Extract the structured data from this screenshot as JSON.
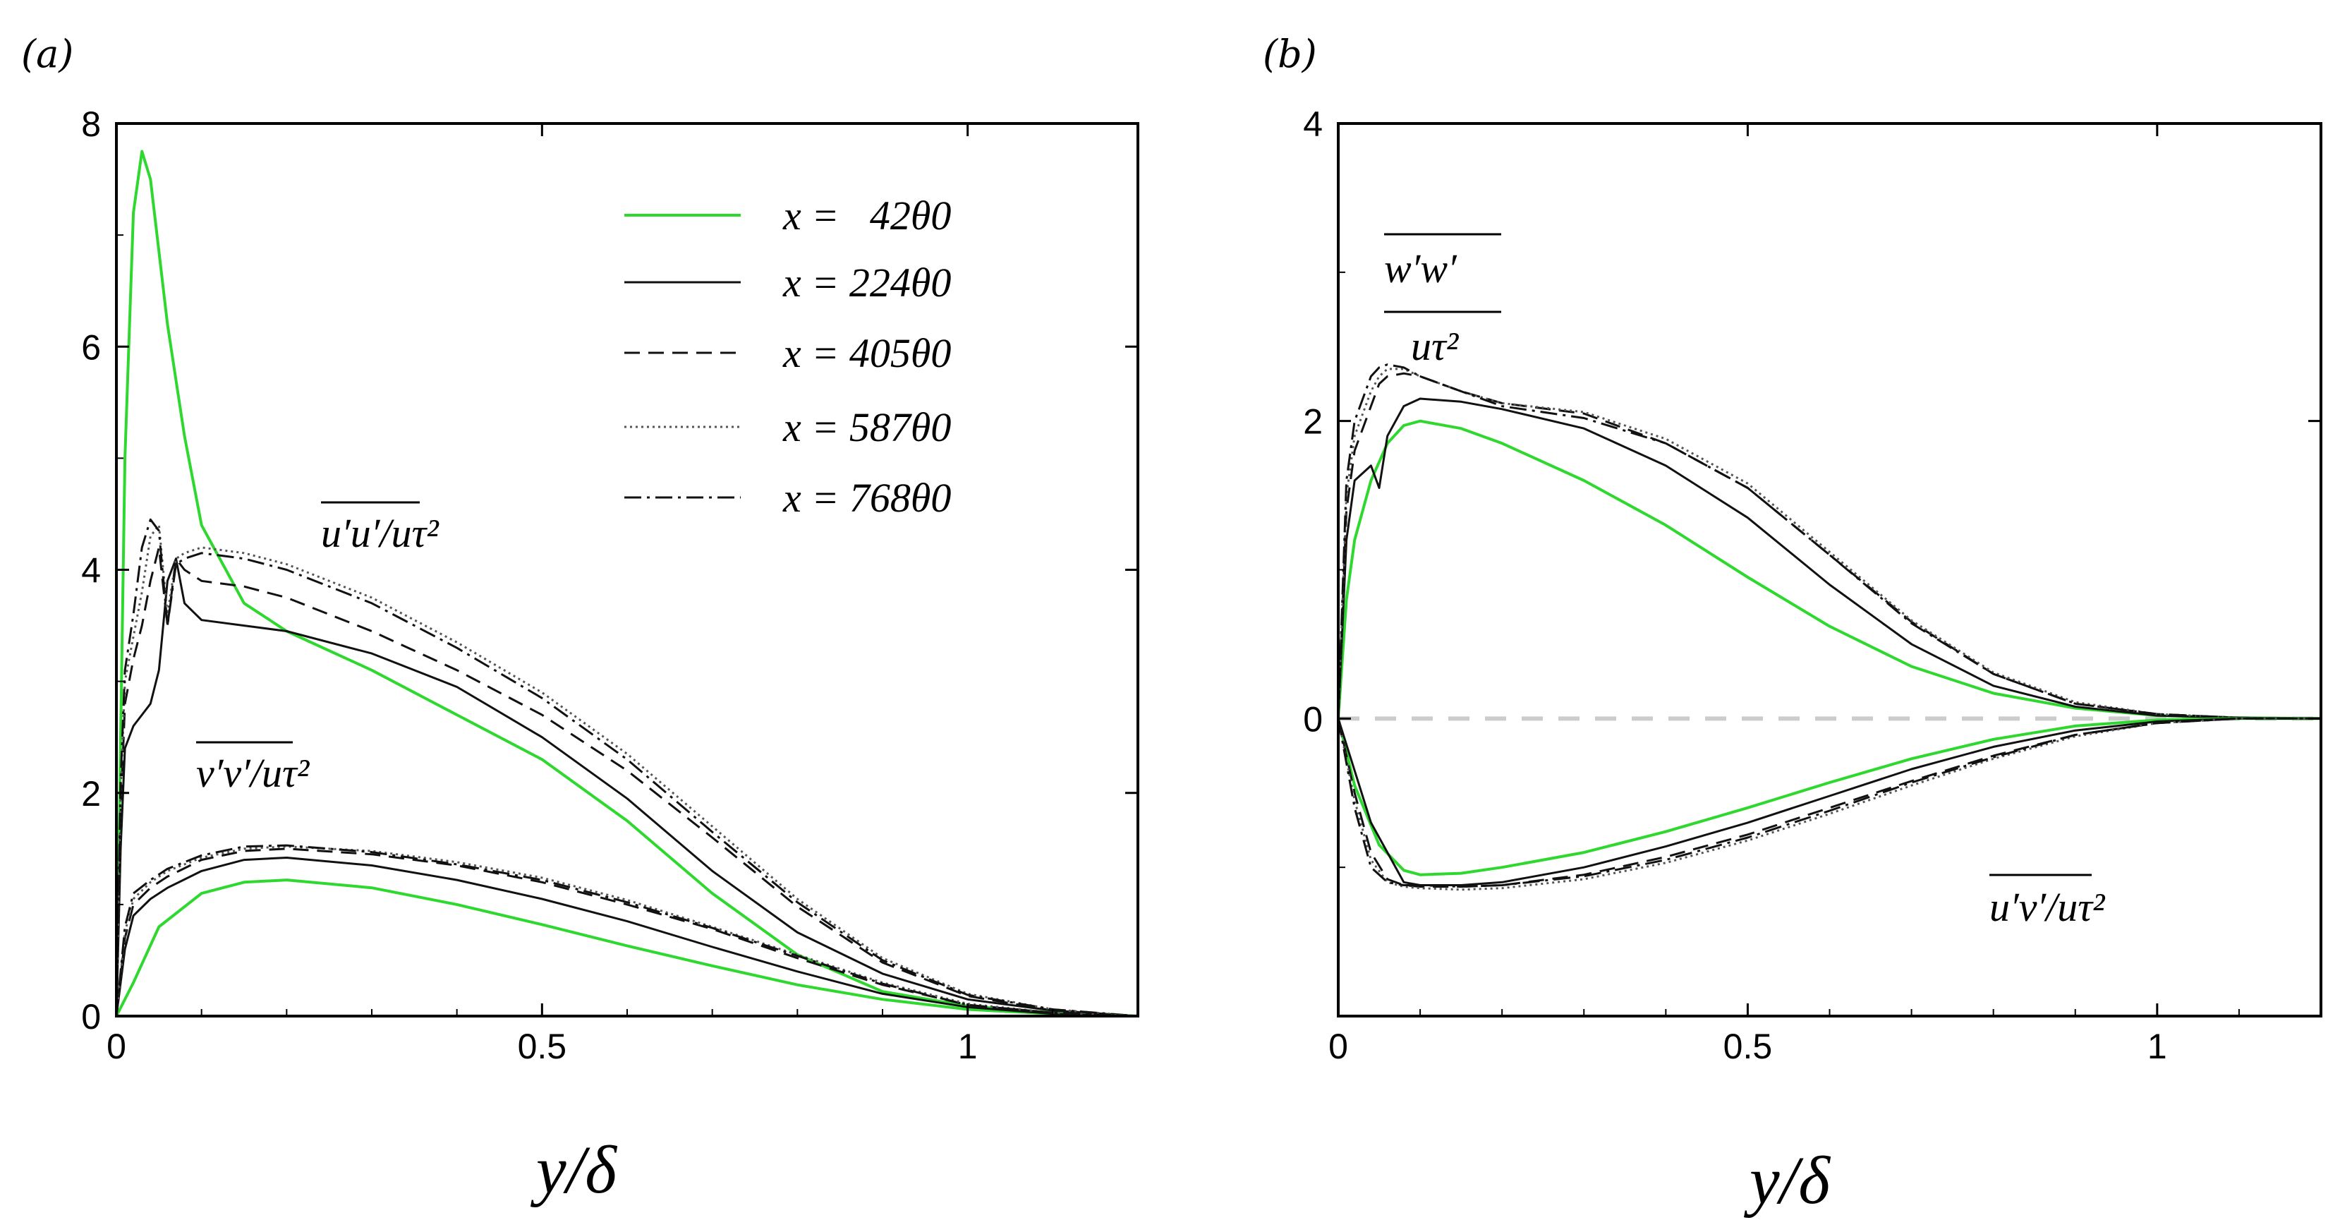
{
  "chart_data": [
    {
      "type": "line",
      "panel_label": "(a)",
      "xlabel": "y/δ",
      "ylabel": "",
      "xlim": [
        0,
        1.2
      ],
      "ylim": [
        0,
        8
      ],
      "xticks": [
        "0",
        "0.5",
        "1"
      ],
      "yticks": [
        "0",
        "2",
        "4",
        "6",
        "8"
      ],
      "legend": {
        "placement": "top-right",
        "entries": [
          "x =   42θ0",
          "x = 224θ0",
          "x = 405θ0",
          "x = 587θ0",
          "x = 768θ0"
        ]
      },
      "annotations": [
        "u′u′/uτ²",
        "v′v′/uτ²"
      ],
      "series": [
        {
          "name": "x =   42θ0",
          "quantity": "u′u′/uτ²",
          "color": "#2ed82e",
          "dash": "solid",
          "x": [
            0,
            0.005,
            0.01,
            0.02,
            0.03,
            0.04,
            0.06,
            0.08,
            0.1,
            0.15,
            0.2,
            0.3,
            0.4,
            0.5,
            0.6,
            0.7,
            0.8,
            0.9,
            1.0,
            1.1,
            1.2
          ],
          "y": [
            0,
            2.5,
            5.0,
            7.2,
            7.75,
            7.5,
            6.2,
            5.2,
            4.4,
            3.7,
            3.45,
            3.1,
            2.7,
            2.3,
            1.75,
            1.1,
            0.55,
            0.22,
            0.09,
            0.03,
            0.0
          ]
        },
        {
          "name": "x = 224θ0",
          "quantity": "u′u′/uτ²",
          "color": "#111111",
          "dash": "solid",
          "x": [
            0,
            0.005,
            0.01,
            0.02,
            0.03,
            0.04,
            0.05,
            0.06,
            0.07,
            0.08,
            0.1,
            0.15,
            0.2,
            0.3,
            0.4,
            0.5,
            0.6,
            0.7,
            0.8,
            0.9,
            1.0,
            1.1,
            1.2
          ],
          "y": [
            0,
            1.5,
            2.4,
            2.6,
            2.7,
            2.8,
            3.1,
            3.9,
            4.1,
            3.7,
            3.55,
            3.5,
            3.45,
            3.25,
            2.95,
            2.5,
            1.95,
            1.3,
            0.75,
            0.38,
            0.15,
            0.05,
            0.0
          ]
        },
        {
          "name": "x = 405θ0",
          "quantity": "u′u′/uτ²",
          "color": "#111111",
          "dash": "dashed",
          "x": [
            0,
            0.005,
            0.01,
            0.02,
            0.03,
            0.04,
            0.05,
            0.06,
            0.07,
            0.08,
            0.1,
            0.15,
            0.2,
            0.3,
            0.4,
            0.5,
            0.6,
            0.7,
            0.8,
            0.9,
            1.0,
            1.1,
            1.2
          ],
          "y": [
            0,
            1.8,
            2.8,
            3.2,
            3.5,
            3.9,
            4.2,
            3.5,
            4.1,
            4.0,
            3.9,
            3.85,
            3.75,
            3.45,
            3.1,
            2.7,
            2.2,
            1.6,
            0.98,
            0.48,
            0.18,
            0.05,
            0.0
          ]
        },
        {
          "name": "x = 587θ0",
          "quantity": "u′u′/uτ²",
          "color": "#555555",
          "dash": "dotted",
          "x": [
            0,
            0.005,
            0.01,
            0.02,
            0.03,
            0.04,
            0.05,
            0.06,
            0.07,
            0.08,
            0.1,
            0.15,
            0.2,
            0.3,
            0.4,
            0.5,
            0.6,
            0.7,
            0.8,
            0.9,
            1.0,
            1.1,
            1.2
          ],
          "y": [
            0,
            2.0,
            3.0,
            3.4,
            3.8,
            4.3,
            4.4,
            3.6,
            4.1,
            4.15,
            4.2,
            4.15,
            4.05,
            3.75,
            3.35,
            2.9,
            2.35,
            1.7,
            1.05,
            0.52,
            0.2,
            0.06,
            0.0
          ]
        },
        {
          "name": "x = 768θ0",
          "quantity": "u′u′/uτ²",
          "color": "#111111",
          "dash": "dashdot",
          "x": [
            0,
            0.005,
            0.01,
            0.02,
            0.03,
            0.04,
            0.05,
            0.06,
            0.07,
            0.08,
            0.1,
            0.15,
            0.2,
            0.3,
            0.4,
            0.5,
            0.6,
            0.7,
            0.8,
            0.9,
            1.0,
            1.1,
            1.2
          ],
          "y": [
            0,
            2.1,
            3.1,
            3.6,
            4.2,
            4.45,
            4.35,
            3.5,
            4.05,
            4.1,
            4.15,
            4.1,
            4.0,
            3.7,
            3.3,
            2.85,
            2.3,
            1.65,
            1.02,
            0.5,
            0.19,
            0.06,
            0.0
          ]
        },
        {
          "name": "x =   42θ0",
          "quantity": "v′v′/uτ²",
          "color": "#2ed82e",
          "dash": "solid",
          "x": [
            0,
            0.02,
            0.05,
            0.1,
            0.15,
            0.2,
            0.3,
            0.4,
            0.5,
            0.6,
            0.7,
            0.8,
            0.9,
            1.0,
            1.1,
            1.2
          ],
          "y": [
            0,
            0.3,
            0.8,
            1.1,
            1.2,
            1.22,
            1.15,
            1.0,
            0.82,
            0.63,
            0.45,
            0.28,
            0.15,
            0.06,
            0.02,
            0.0
          ]
        },
        {
          "name": "x = 224θ0",
          "quantity": "v′v′/uτ²",
          "color": "#111111",
          "dash": "solid",
          "x": [
            0,
            0.01,
            0.02,
            0.04,
            0.06,
            0.1,
            0.15,
            0.2,
            0.3,
            0.4,
            0.5,
            0.6,
            0.7,
            0.8,
            0.9,
            1.0,
            1.1,
            1.2
          ],
          "y": [
            0,
            0.6,
            0.9,
            1.05,
            1.15,
            1.3,
            1.4,
            1.42,
            1.35,
            1.22,
            1.05,
            0.85,
            0.62,
            0.4,
            0.2,
            0.08,
            0.02,
            0.0
          ]
        },
        {
          "name": "x = 405θ0",
          "quantity": "v′v′/uτ²",
          "color": "#111111",
          "dash": "dashed",
          "x": [
            0,
            0.01,
            0.02,
            0.04,
            0.06,
            0.1,
            0.15,
            0.2,
            0.3,
            0.4,
            0.5,
            0.6,
            0.7,
            0.8,
            0.9,
            1.0,
            1.1,
            1.2
          ],
          "y": [
            0,
            0.7,
            1.0,
            1.15,
            1.25,
            1.4,
            1.48,
            1.5,
            1.45,
            1.35,
            1.2,
            1.0,
            0.78,
            0.52,
            0.28,
            0.1,
            0.03,
            0.0
          ]
        },
        {
          "name": "x = 587θ0",
          "quantity": "v′v′/uτ²",
          "color": "#555555",
          "dash": "dotted",
          "x": [
            0,
            0.01,
            0.02,
            0.04,
            0.06,
            0.1,
            0.15,
            0.2,
            0.3,
            0.4,
            0.5,
            0.6,
            0.7,
            0.8,
            0.9,
            1.0,
            1.1,
            1.2
          ],
          "y": [
            0,
            0.75,
            1.05,
            1.2,
            1.3,
            1.42,
            1.5,
            1.52,
            1.48,
            1.38,
            1.24,
            1.04,
            0.8,
            0.55,
            0.3,
            0.11,
            0.03,
            0.0
          ]
        },
        {
          "name": "x = 768θ0",
          "quantity": "v′v′/uτ²",
          "color": "#111111",
          "dash": "dashdot",
          "x": [
            0,
            0.01,
            0.02,
            0.04,
            0.06,
            0.1,
            0.15,
            0.2,
            0.3,
            0.4,
            0.5,
            0.6,
            0.7,
            0.8,
            0.9,
            1.0,
            1.1,
            1.2
          ],
          "y": [
            0,
            0.8,
            1.1,
            1.22,
            1.32,
            1.44,
            1.52,
            1.53,
            1.47,
            1.36,
            1.22,
            1.02,
            0.79,
            0.54,
            0.29,
            0.1,
            0.03,
            0.0
          ]
        }
      ]
    },
    {
      "type": "line",
      "panel_label": "(b)",
      "xlabel": "y/δ",
      "ylabel": "",
      "xlim": [
        0,
        1.2
      ],
      "ylim": [
        -2,
        4
      ],
      "xticks": [
        "0",
        "0.5",
        "1"
      ],
      "yticks": [
        "0",
        "2",
        "4"
      ],
      "reference_line": {
        "y": 0,
        "style": "dashed",
        "color": "#cccccc"
      },
      "annotations": [
        "w′w′",
        "uτ²",
        "u′v′/uτ²"
      ],
      "series": [
        {
          "name": "x =   42θ0",
          "quantity": "w′w′/uτ²",
          "color": "#2ed82e",
          "dash": "solid",
          "x": [
            0,
            0.01,
            0.02,
            0.04,
            0.06,
            0.08,
            0.1,
            0.15,
            0.2,
            0.3,
            0.4,
            0.5,
            0.6,
            0.7,
            0.8,
            0.9,
            1.0,
            1.1,
            1.2
          ],
          "y": [
            0,
            0.8,
            1.2,
            1.6,
            1.85,
            1.97,
            2.0,
            1.95,
            1.85,
            1.6,
            1.3,
            0.95,
            0.62,
            0.35,
            0.17,
            0.07,
            0.02,
            0.005,
            0.0
          ]
        },
        {
          "name": "x = 224θ0",
          "quantity": "w′w′/uτ²",
          "color": "#111111",
          "dash": "solid",
          "x": [
            0,
            0.01,
            0.02,
            0.04,
            0.05,
            0.06,
            0.08,
            0.1,
            0.15,
            0.2,
            0.3,
            0.4,
            0.5,
            0.6,
            0.7,
            0.8,
            0.9,
            1.0,
            1.1,
            1.2
          ],
          "y": [
            0,
            1.2,
            1.6,
            1.7,
            1.55,
            1.9,
            2.1,
            2.15,
            2.13,
            2.08,
            1.95,
            1.7,
            1.35,
            0.9,
            0.5,
            0.22,
            0.08,
            0.02,
            0.005,
            0.0
          ]
        },
        {
          "name": "x = 405θ0",
          "quantity": "w′w′/uτ²",
          "color": "#111111",
          "dash": "dashed",
          "x": [
            0,
            0.01,
            0.02,
            0.04,
            0.05,
            0.06,
            0.08,
            0.1,
            0.15,
            0.2,
            0.3,
            0.4,
            0.5,
            0.6,
            0.7,
            0.8,
            0.9,
            1.0,
            1.1,
            1.2
          ],
          "y": [
            0,
            1.4,
            1.8,
            2.1,
            2.25,
            2.3,
            2.32,
            2.3,
            2.2,
            2.12,
            2.05,
            1.85,
            1.55,
            1.1,
            0.65,
            0.3,
            0.1,
            0.03,
            0.005,
            0.0
          ]
        },
        {
          "name": "x = 587θ0",
          "quantity": "w′w′/uτ²",
          "color": "#555555",
          "dash": "dotted",
          "x": [
            0,
            0.01,
            0.02,
            0.04,
            0.05,
            0.06,
            0.08,
            0.1,
            0.15,
            0.2,
            0.3,
            0.4,
            0.5,
            0.6,
            0.7,
            0.8,
            0.9,
            1.0,
            1.1,
            1.2
          ],
          "y": [
            0,
            1.5,
            1.9,
            2.2,
            2.3,
            2.35,
            2.35,
            2.3,
            2.2,
            2.12,
            2.06,
            1.88,
            1.58,
            1.12,
            0.66,
            0.31,
            0.11,
            0.03,
            0.005,
            0.0
          ]
        },
        {
          "name": "x = 768θ0",
          "quantity": "w′w′/uτ²",
          "color": "#111111",
          "dash": "dashdot",
          "x": [
            0,
            0.01,
            0.02,
            0.04,
            0.05,
            0.06,
            0.08,
            0.1,
            0.15,
            0.2,
            0.3,
            0.4,
            0.5,
            0.6,
            0.7,
            0.8,
            0.9,
            1.0,
            1.1,
            1.2
          ],
          "y": [
            0,
            1.6,
            2.0,
            2.3,
            2.36,
            2.38,
            2.36,
            2.3,
            2.2,
            2.1,
            2.02,
            1.85,
            1.55,
            1.1,
            0.64,
            0.3,
            0.1,
            0.03,
            0.005,
            0.0
          ]
        },
        {
          "name": "x =   42θ0",
          "quantity": "u′v′/uτ²",
          "color": "#2ed82e",
          "dash": "solid",
          "x": [
            0,
            0.02,
            0.05,
            0.08,
            0.1,
            0.15,
            0.2,
            0.3,
            0.4,
            0.5,
            0.6,
            0.7,
            0.8,
            0.9,
            1.0,
            1.1,
            1.2
          ],
          "y": [
            0,
            -0.45,
            -0.85,
            -1.02,
            -1.05,
            -1.04,
            -1.0,
            -0.9,
            -0.76,
            -0.6,
            -0.43,
            -0.27,
            -0.14,
            -0.05,
            -0.01,
            0.0,
            0.0
          ]
        },
        {
          "name": "x = 224θ0",
          "quantity": "u′v′/uτ²",
          "color": "#111111",
          "dash": "solid",
          "x": [
            0,
            0.02,
            0.04,
            0.06,
            0.08,
            0.1,
            0.15,
            0.2,
            0.3,
            0.4,
            0.5,
            0.6,
            0.7,
            0.8,
            0.9,
            1.0,
            1.1,
            1.2
          ],
          "y": [
            0,
            -0.35,
            -0.7,
            -0.9,
            -1.1,
            -1.12,
            -1.12,
            -1.1,
            -1.0,
            -0.86,
            -0.7,
            -0.52,
            -0.34,
            -0.19,
            -0.08,
            -0.02,
            0.0,
            0.0
          ]
        },
        {
          "name": "x = 405θ0",
          "quantity": "u′v′/uτ²",
          "color": "#111111",
          "dash": "dashed",
          "x": [
            0,
            0.02,
            0.04,
            0.06,
            0.08,
            0.1,
            0.15,
            0.2,
            0.3,
            0.4,
            0.5,
            0.6,
            0.7,
            0.8,
            0.9,
            1.0,
            1.1,
            1.2
          ],
          "y": [
            0,
            -0.5,
            -0.9,
            -1.08,
            -1.12,
            -1.13,
            -1.13,
            -1.12,
            -1.05,
            -0.93,
            -0.78,
            -0.6,
            -0.42,
            -0.25,
            -0.11,
            -0.03,
            0.0,
            0.0
          ]
        },
        {
          "name": "x = 587θ0",
          "quantity": "u′v′/uτ²",
          "color": "#555555",
          "dash": "dotted",
          "x": [
            0,
            0.02,
            0.04,
            0.06,
            0.08,
            0.1,
            0.15,
            0.2,
            0.3,
            0.4,
            0.5,
            0.6,
            0.7,
            0.8,
            0.9,
            1.0,
            1.1,
            1.2
          ],
          "y": [
            0,
            -0.55,
            -0.95,
            -1.1,
            -1.13,
            -1.14,
            -1.15,
            -1.14,
            -1.08,
            -0.97,
            -0.82,
            -0.64,
            -0.45,
            -0.27,
            -0.12,
            -0.03,
            0.0,
            0.0
          ]
        },
        {
          "name": "x = 768θ0",
          "quantity": "u′v′/uτ²",
          "color": "#111111",
          "dash": "dashdot",
          "x": [
            0,
            0.02,
            0.04,
            0.06,
            0.08,
            0.1,
            0.15,
            0.2,
            0.3,
            0.4,
            0.5,
            0.6,
            0.7,
            0.8,
            0.9,
            1.0,
            1.1,
            1.2
          ],
          "y": [
            0,
            -0.6,
            -1.0,
            -1.1,
            -1.12,
            -1.12,
            -1.13,
            -1.12,
            -1.06,
            -0.95,
            -0.8,
            -0.62,
            -0.43,
            -0.26,
            -0.11,
            -0.03,
            0.0,
            0.0
          ]
        }
      ]
    }
  ]
}
